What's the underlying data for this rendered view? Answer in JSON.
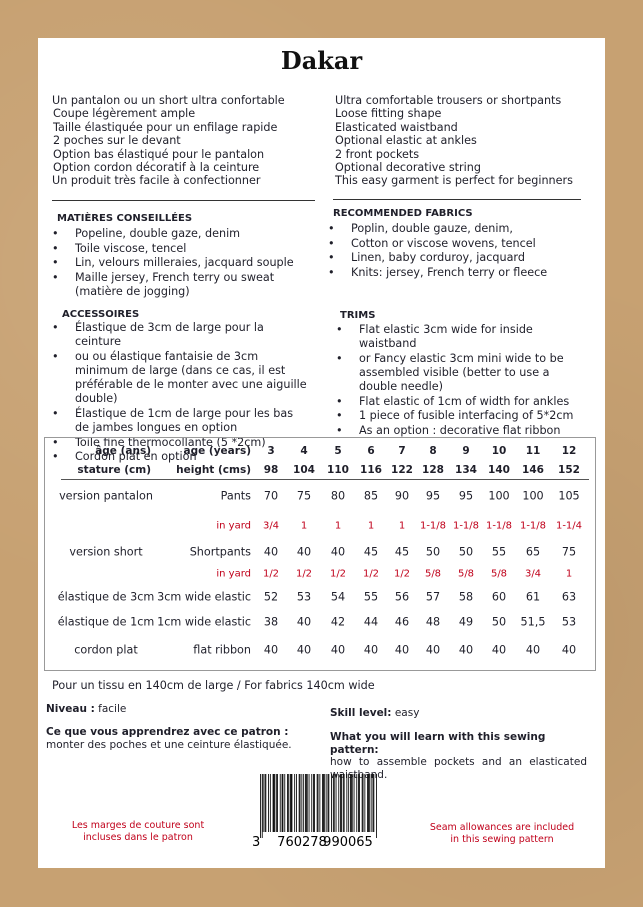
{
  "title": "Dakar",
  "intro_fr": [
    "Un pantalon ou un short ultra confortable",
    "Coupe légèrement ample",
    "Taille élastiquée pour un enfilage rapide",
    "2 poches sur le devant",
    "Option bas élastiqué pour le pantalon",
    "Option cordon décoratif à la ceinture",
    "Un produit très facile à confectionner"
  ],
  "intro_en": [
    "Ultra comfortable trousers or shortpants",
    "Loose fitting shape",
    "Elasticated waistband",
    "Optional elastic at ankles",
    "2 front pockets",
    "Optional decorative string",
    "This easy garment is perfect for beginners"
  ],
  "fabrics_fr": {
    "heading": "MATIÈRES CONSEILLÉES",
    "items": [
      "Popeline, double gaze, denim",
      "Toile viscose, tencel",
      "Lin, velours milleraies, jacquard souple",
      "Maille jersey, French terry ou sweat (matière de jogging)"
    ]
  },
  "fabrics_en": {
    "heading": "RECOMMENDED FABRICS",
    "items": [
      "Poplin, double gauze, denim,",
      "Cotton or viscose wovens, tencel",
      "Linen, baby corduroy, jacquard",
      "Knits: jersey, French terry or fleece"
    ]
  },
  "accessories_fr": {
    "heading": "ACCESSOIRES",
    "items": [
      "Élastique de 3cm de large pour la ceinture",
      "ou ou élastique fantaisie de 3cm minimum de large (dans ce cas, il est préférable de le monter avec une aiguille double)",
      "Élastique de 1cm de large pour les bas de jambes longues en option",
      "Toile fine thermocollante (5 *2cm)",
      "Cordon plat en option"
    ]
  },
  "trims_en": {
    "heading": "TRIMS",
    "items": [
      "Flat elastic 3cm wide for inside waistband",
      "or Fancy elastic 3cm mini wide to be assembled visible (better to use a double needle)",
      "Flat elastic of 1cm of width for ankles",
      "1 piece of fusible interfacing of 5*2cm",
      "As an option : decorative flat ribbon"
    ]
  },
  "table": {
    "header": [
      {
        "fr": "âge (ans)",
        "en": "age (years)",
        "values": [
          "3",
          "4",
          "5",
          "6",
          "7",
          "8",
          "9",
          "10",
          "11",
          "12"
        ]
      },
      {
        "fr": "stature (cm)",
        "en": "height (cms)",
        "values": [
          "98",
          "104",
          "110",
          "116",
          "122",
          "128",
          "134",
          "140",
          "146",
          "152"
        ]
      }
    ],
    "rows": [
      {
        "fr": "version pantalon",
        "en": "Pants",
        "values": [
          "70",
          "75",
          "80",
          "85",
          "90",
          "95",
          "95",
          "100",
          "100",
          "105"
        ]
      },
      {
        "en": "in yard",
        "values": [
          "3/4",
          "1",
          "1",
          "1",
          "1",
          "1-1/8",
          "1-1/8",
          "1-1/8",
          "1-1/8",
          "1-1/4"
        ]
      },
      {
        "fr": "version short",
        "en": "Shortpants",
        "values": [
          "40",
          "40",
          "40",
          "45",
          "45",
          "50",
          "50",
          "55",
          "65",
          "75"
        ]
      },
      {
        "en": "in yard",
        "values": [
          "1/2",
          "1/2",
          "1/2",
          "1/2",
          "1/2",
          "5/8",
          "5/8",
          "5/8",
          "3/4",
          "1"
        ]
      },
      {
        "fr": "élastique de 3cm",
        "en": "3cm wide elastic",
        "values": [
          "52",
          "53",
          "54",
          "55",
          "56",
          "57",
          "58",
          "60",
          "61",
          "63"
        ]
      },
      {
        "fr": "élastique de 1cm",
        "en": "1cm wide elastic",
        "values": [
          "38",
          "40",
          "42",
          "44",
          "46",
          "48",
          "49",
          "50",
          "51,5",
          "53"
        ]
      },
      {
        "fr": "cordon plat",
        "en": "flat ribbon",
        "values": [
          "40",
          "40",
          "40",
          "40",
          "40",
          "40",
          "40",
          "40",
          "40",
          "40"
        ]
      }
    ]
  },
  "fabric_width": "Pour un tissu en 140cm de large  / For fabrics 140cm wide",
  "level_fr": {
    "label": "Niveau :",
    "value": "facile"
  },
  "level_en": {
    "label": "Skill level:",
    "value": "easy"
  },
  "learn_fr": {
    "label": "Ce que vous apprendrez avec ce patron :",
    "text": "monter des poches et une ceinture élastiquée."
  },
  "learn_en": {
    "label": "What you will learn with this sewing pattern:",
    "text": "how to assemble pockets and an elasticated waistband."
  },
  "barcode": [
    "3",
    "760278",
    "990065"
  ],
  "seam_fr": [
    "Les marges de couture sont",
    "incluses dans le patron"
  ],
  "seam_en": [
    "Seam allowances are included",
    "in this sewing pattern"
  ]
}
